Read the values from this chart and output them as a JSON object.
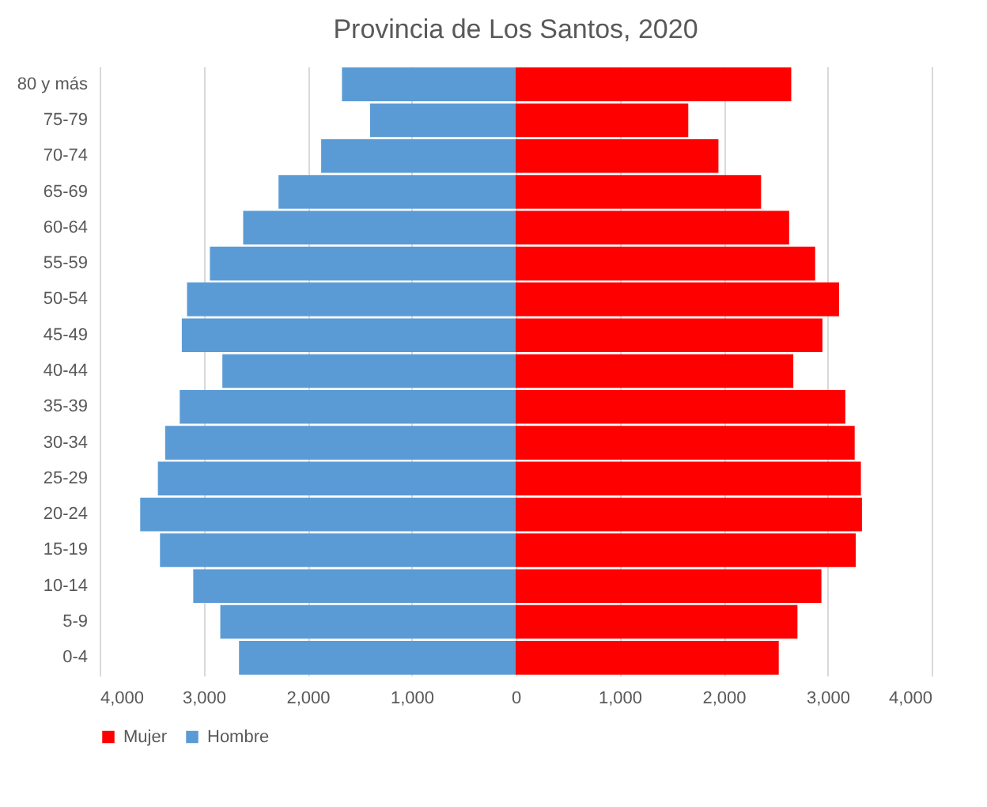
{
  "chart_data": {
    "type": "bar",
    "orientation": "horizontal",
    "title": "Provincia de Los Santos, 2020",
    "categories": [
      "80 y más",
      "75-79",
      "70-74",
      "65-69",
      "60-64",
      "55-59",
      "50-54",
      "45-49",
      "40-44",
      "35-39",
      "30-34",
      "25-29",
      "20-24",
      "15-19",
      "10-14",
      "5-9",
      "0-4"
    ],
    "series": [
      {
        "name": "Mujer",
        "color": "#ff0000",
        "values": [
          2650,
          1660,
          1950,
          2360,
          2630,
          2880,
          3110,
          2950,
          2670,
          3170,
          3260,
          3320,
          3330,
          3270,
          2940,
          2710,
          2530
        ]
      },
      {
        "name": "Hombre",
        "color": "#5b9bd5",
        "values": [
          -1670,
          -1400,
          -1870,
          -2280,
          -2620,
          -2940,
          -3160,
          -3210,
          -2820,
          -3230,
          -3370,
          -3440,
          -3610,
          -3420,
          -3100,
          -2840,
          -2660
        ]
      }
    ],
    "xlim": [
      -4000,
      4000
    ],
    "xticks": [
      {
        "value": -4000,
        "label": "4,000"
      },
      {
        "value": -3000,
        "label": "3,000"
      },
      {
        "value": -2000,
        "label": "2,000"
      },
      {
        "value": -1000,
        "label": "1,000"
      },
      0,
      {
        "value": 1000,
        "label": "1,000"
      },
      {
        "value": 2000,
        "label": "2,000"
      },
      {
        "value": 3000,
        "label": "3,000"
      },
      {
        "value": 4000,
        "label": "4,000"
      }
    ],
    "stacked": true,
    "grid": "x",
    "legend": "bottom"
  }
}
